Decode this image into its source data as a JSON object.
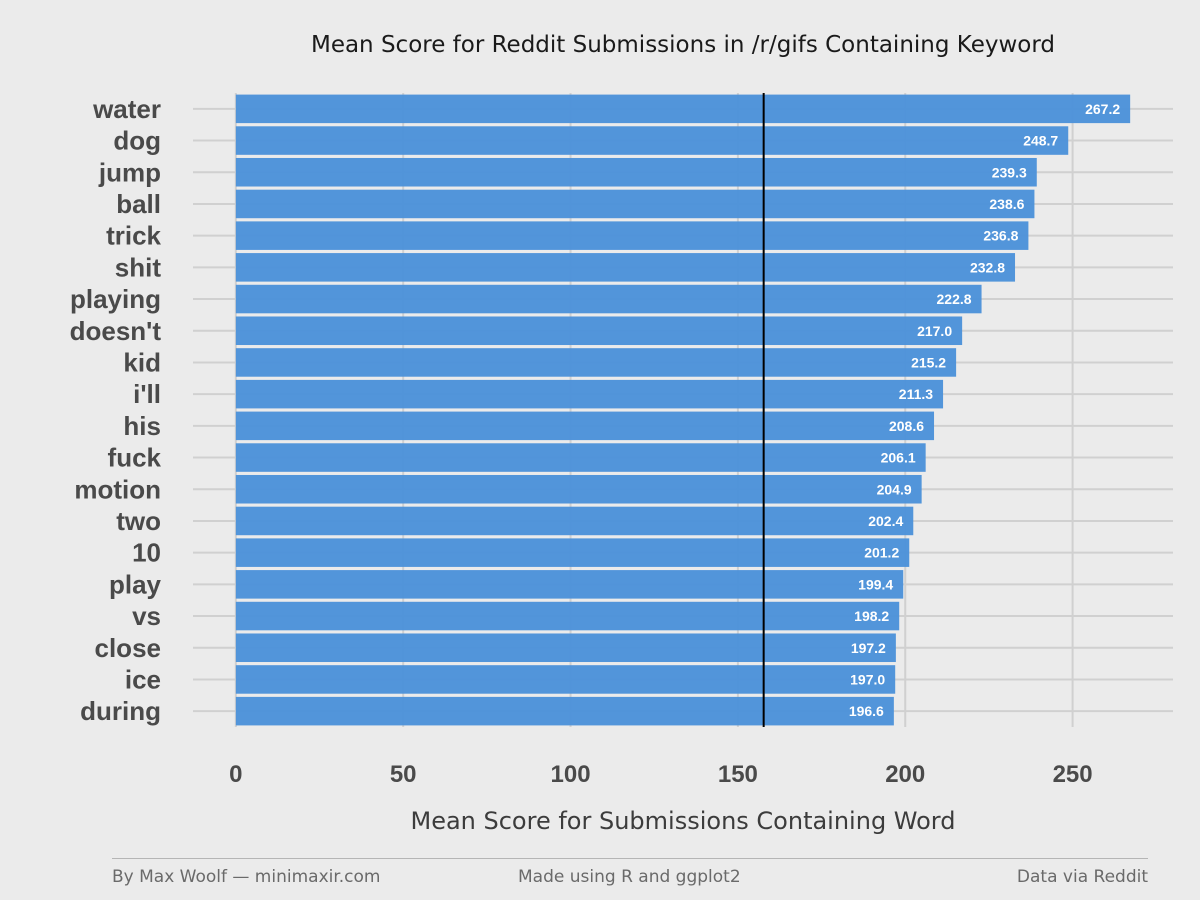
{
  "chart_data": {
    "type": "bar",
    "orientation": "horizontal",
    "title": "Mean Score for Reddit Submissions in /r/gifs Containing Keyword",
    "xlabel": "Mean Score for Submissions Containing Word",
    "ylabel": "",
    "categories": [
      "water",
      "dog",
      "jump",
      "ball",
      "trick",
      "shit",
      "playing",
      "doesn't",
      "kid",
      "i'll",
      "his",
      "fuck",
      "motion",
      "two",
      "10",
      "play",
      "vs",
      "close",
      "ice",
      "during"
    ],
    "values": [
      267.2,
      248.7,
      239.3,
      238.6,
      236.8,
      232.8,
      222.8,
      217.0,
      215.2,
      211.3,
      208.6,
      206.1,
      204.9,
      202.4,
      201.2,
      199.4,
      198.2,
      197.2,
      197.0,
      196.6
    ],
    "value_labels": [
      "267.2",
      "248.7",
      "239.3",
      "238.6",
      "236.8",
      "232.8",
      "222.8",
      "217.0",
      "215.2",
      "211.3",
      "208.6",
      "206.1",
      "204.9",
      "202.4",
      "201.2",
      "199.4",
      "198.2",
      "197.2",
      "197.0",
      "196.6"
    ],
    "xticks": [
      0,
      50,
      100,
      150,
      200,
      250
    ],
    "xtick_labels": [
      "0",
      "50",
      "100",
      "150",
      "200",
      "250"
    ],
    "xlim": [
      -12.8,
      280
    ],
    "reference_line": 157.7,
    "grid": true,
    "legend": "none",
    "colors": {
      "bar": "#4a90d9",
      "background": "#ebebeb",
      "grid": "#d0d0d0",
      "reference_line": "#000000"
    }
  },
  "footer": {
    "left": "By Max Woolf — minimaxir.com",
    "center": "Made using R and ggplot2",
    "right": "Data via Reddit"
  }
}
